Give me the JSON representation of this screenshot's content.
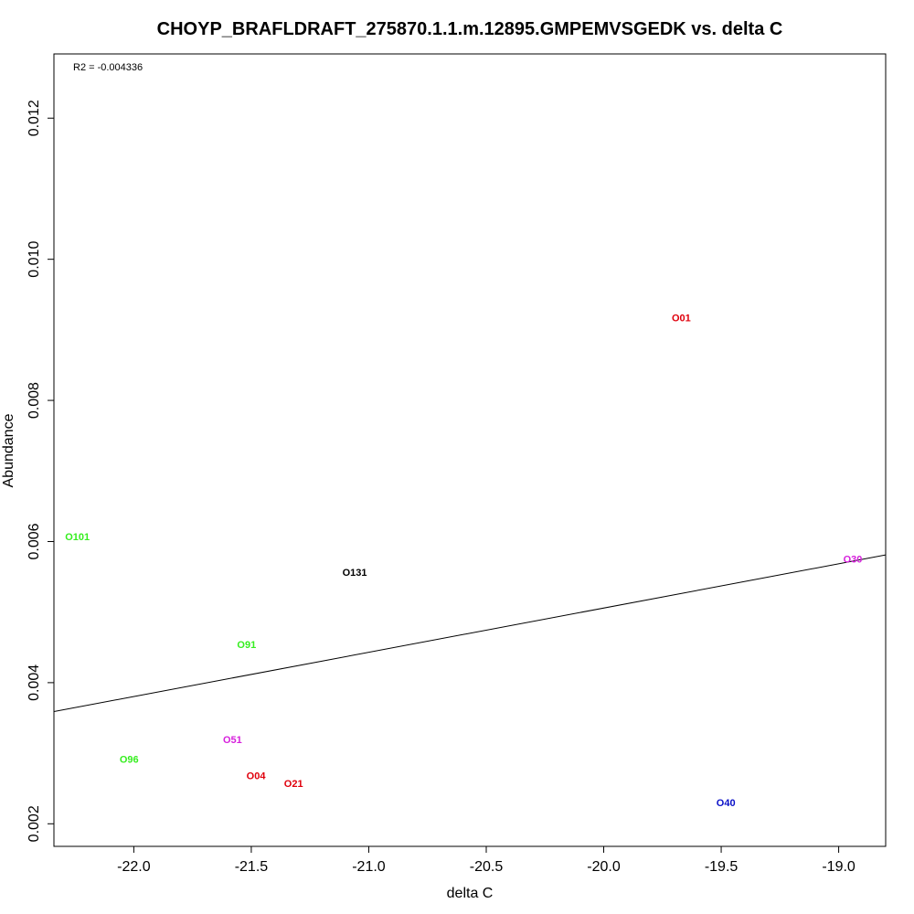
{
  "chart_data": {
    "type": "scatter",
    "title": "CHOYP_BRAFLDRAFT_275870.1.1.m.12895.GMPEMVSGEDK vs. delta C",
    "xlabel": "delta C",
    "ylabel": "Abundance",
    "annotation": "R2 = -0.004336",
    "xlim": [
      -22.34,
      -18.8
    ],
    "ylim": [
      0.00168,
      0.01291
    ],
    "x_ticks": [
      -22.0,
      -21.5,
      -21.0,
      -20.5,
      -20.0,
      -19.5,
      -19.0
    ],
    "x_tick_labels": [
      "-22.0",
      "-21.5",
      "-21.0",
      "-20.5",
      "-20.0",
      "-19.5",
      "-19.0"
    ],
    "y_ticks": [
      0.002,
      0.004,
      0.006,
      0.008,
      0.01,
      0.012
    ],
    "y_tick_labels": [
      "0.002",
      "0.004",
      "0.006",
      "0.008",
      "0.010",
      "0.012"
    ],
    "grid": false,
    "points": [
      {
        "label": "O01",
        "x": -19.67,
        "y": 0.00916,
        "color": "#e0000c"
      },
      {
        "label": "O101",
        "x": -22.24,
        "y": 0.00606,
        "color": "#35ee1e"
      },
      {
        "label": "O30",
        "x": -18.94,
        "y": 0.00574,
        "color": "#d61fdc"
      },
      {
        "label": "O131",
        "x": -21.06,
        "y": 0.00555,
        "color": "#000000"
      },
      {
        "label": "O91",
        "x": -21.52,
        "y": 0.00453,
        "color": "#35ee1e"
      },
      {
        "label": "O51",
        "x": -21.58,
        "y": 0.00318,
        "color": "#d61fdc"
      },
      {
        "label": "O96",
        "x": -22.02,
        "y": 0.0029,
        "color": "#35ee1e"
      },
      {
        "label": "O04",
        "x": -21.48,
        "y": 0.00267,
        "color": "#e0000c"
      },
      {
        "label": "O21",
        "x": -21.32,
        "y": 0.00256,
        "color": "#e0000c"
      },
      {
        "label": "O40",
        "x": -19.48,
        "y": 0.00229,
        "color": "#0a10c8"
      }
    ],
    "regression_line": {
      "x": [
        -22.34,
        -18.8
      ],
      "y": [
        0.00359,
        0.00581
      ],
      "color": "#000000"
    }
  }
}
